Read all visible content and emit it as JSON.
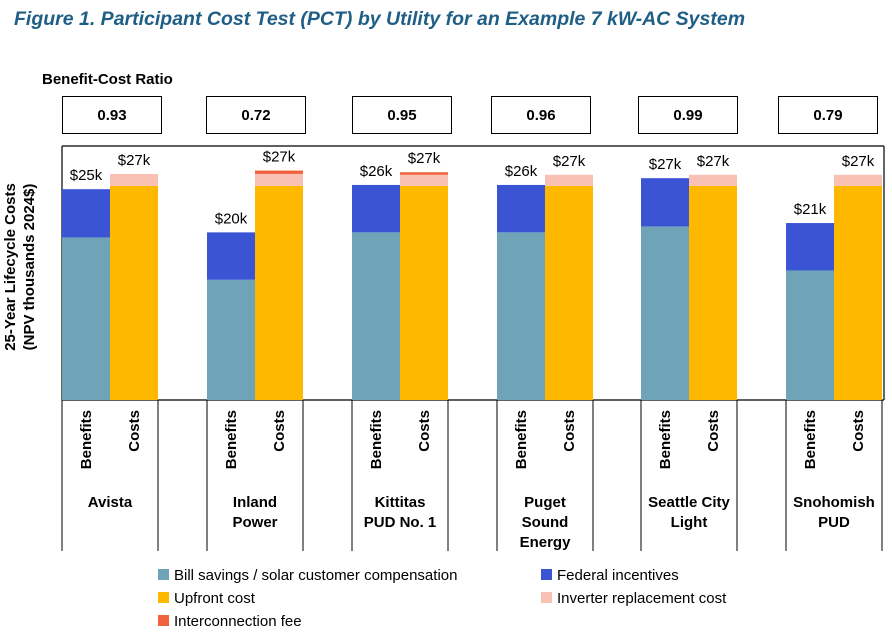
{
  "figure_title": "Figure 1. Participant Cost Test (PCT) by Utility for an Example 7 kW-AC System",
  "chart_data": {
    "type": "bar",
    "stacked": true,
    "title": "Figure 1. Participant Cost Test (PCT) by Utility for an Example 7 kW-AC System",
    "ratio_heading": "Benefit-Cost Ratio",
    "ylabel": "25-Year Lifecycle Costs (NPV thousands 2024$)",
    "ylabel_line1": "25-Year Lifecycle Costs",
    "ylabel_line2": "(NPV thousands 2024$)",
    "ylim": [
      0,
      30
    ],
    "bar_labels": [
      "Benefits",
      "Costs"
    ],
    "categories": [
      "Avista",
      "Inland Power",
      "Kittitas PUD No. 1",
      "Puget Sound Energy",
      "Seattle City Light",
      "Snohomish PUD"
    ],
    "category_lines": [
      [
        "Avista"
      ],
      [
        "Inland",
        "Power"
      ],
      [
        "Kittitas",
        "PUD No. 1"
      ],
      [
        "Puget",
        "Sound",
        "Energy"
      ],
      [
        "Seattle City",
        "Light"
      ],
      [
        "Snohomish",
        "PUD"
      ]
    ],
    "benefit_cost_ratios": [
      "0.93",
      "0.72",
      "0.95",
      "0.96",
      "0.99",
      "0.79"
    ],
    "benefit_totals": [
      "$25k",
      "$20k",
      "$26k",
      "$26k",
      "$27k",
      "$21k"
    ],
    "cost_totals": [
      "$27k",
      "$27k",
      "$27k",
      "$27k",
      "$27k",
      "$27k"
    ],
    "benefit_series": [
      {
        "name": "Bill savings / solar customer compensation",
        "color": "#6fa3b7",
        "values": [
          19.2,
          14.2,
          19.8,
          19.8,
          20.5,
          15.3
        ]
      },
      {
        "name": "Federal incentives",
        "color": "#3b54d4",
        "values": [
          5.7,
          5.6,
          5.6,
          5.6,
          5.7,
          5.6
        ]
      }
    ],
    "cost_series": [
      {
        "name": "Upfront cost",
        "color": "#ffb800",
        "values": [
          25.3,
          25.3,
          25.3,
          25.3,
          25.3,
          25.3
        ]
      },
      {
        "name": "Inverter replacement cost",
        "color": "#f8c1b4",
        "values": [
          1.4,
          1.4,
          1.3,
          1.3,
          1.3,
          1.3
        ]
      },
      {
        "name": "Interconnection fee",
        "color": "#f2623f",
        "values": [
          0.0,
          0.4,
          0.3,
          0.0,
          0.0,
          0.0
        ]
      }
    ],
    "legend": [
      {
        "name": "Bill savings / solar customer compensation",
        "color": "#6fa3b7"
      },
      {
        "name": "Federal incentives",
        "color": "#3b54d4"
      },
      {
        "name": "Upfront cost",
        "color": "#ffb800"
      },
      {
        "name": "Inverter replacement cost",
        "color": "#f8c1b4"
      },
      {
        "name": "Interconnection fee",
        "color": "#f2623f"
      }
    ]
  }
}
